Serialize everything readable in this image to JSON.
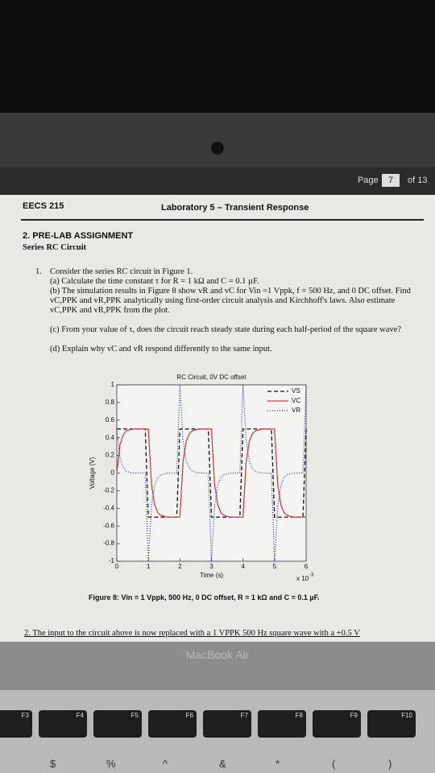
{
  "toolbar": {
    "page_label": "Page",
    "page_number": "7",
    "page_total": "of 13"
  },
  "header": {
    "course": "EECS 215",
    "title": "Laboratory 5 – Transient Response"
  },
  "section": {
    "heading": "2. PRE-LAB ASSIGNMENT",
    "subheading": "Series RC Circuit"
  },
  "items": [
    {
      "number": "1.",
      "text": "Consider the series RC circuit in Figure 1.",
      "parts": [
        "(a) Calculate the time constant τ for R = 1 kΩ and C = 0.1 µF.",
        "(b) The simulation results in Figure 8 show vR and vC for Vin =1 Vppk, f = 500 Hz, and 0 DC offset. Find vC,PPK and vR,PPK analytically using first-order circuit analysis and Kirchhoff's laws. Also estimate vC,PPK and vR,PPK from the plot.",
        "(c) From your value of τ, does the circuit reach steady state during each half-period of the square wave?",
        "(d) Explain why vC and vR respond differently to the same input."
      ]
    }
  ],
  "chart_data": {
    "type": "line",
    "title": "RC Circuit, 0V DC offset",
    "x_label": "Time (s)",
    "y_label": "Voltage (V)",
    "x_multiplier": "x 10",
    "x_multiplier_exponent": "-3",
    "xlim": [
      0,
      6
    ],
    "ylim": [
      -1,
      1
    ],
    "xticks": [
      0,
      1,
      2,
      3,
      4,
      5,
      6
    ],
    "yticks": [
      -1,
      -0.8,
      -0.6,
      -0.4,
      -0.2,
      0,
      0.2,
      0.4,
      0.6,
      0.8,
      1
    ],
    "legend": "top-right",
    "x": [
      0,
      0.1,
      0.2,
      0.3,
      0.4,
      0.5,
      0.6,
      0.7,
      0.8,
      0.9,
      1,
      1.1,
      1.2,
      1.3,
      1.4,
      1.5,
      1.6,
      1.7,
      1.8,
      1.9,
      2,
      2.1,
      2.2,
      2.3,
      2.4,
      2.5,
      2.6,
      2.7,
      2.8,
      2.9,
      3,
      3.1,
      3.2,
      3.3,
      3.4,
      3.5,
      3.6,
      3.7,
      3.8,
      3.9,
      4,
      4.1,
      4.2,
      4.3,
      4.4,
      4.5,
      4.6,
      4.7,
      4.8,
      4.9,
      5,
      5.1,
      5.2,
      5.3,
      5.4,
      5.5,
      5.6,
      5.7,
      5.8,
      5.9,
      6
    ],
    "series": [
      {
        "name": "VS",
        "color": "#111111",
        "dash": "5,3",
        "values": [
          0.5,
          0.5,
          0.5,
          0.5,
          0.5,
          0.5,
          0.5,
          0.5,
          0.5,
          0.5,
          -0.5,
          -0.5,
          -0.5,
          -0.5,
          -0.5,
          -0.5,
          -0.5,
          -0.5,
          -0.5,
          -0.5,
          0.5,
          0.5,
          0.5,
          0.5,
          0.5,
          0.5,
          0.5,
          0.5,
          0.5,
          0.5,
          -0.5,
          -0.5,
          -0.5,
          -0.5,
          -0.5,
          -0.5,
          -0.5,
          -0.5,
          -0.5,
          -0.5,
          0.5,
          0.5,
          0.5,
          0.5,
          0.5,
          0.5,
          0.5,
          0.5,
          0.5,
          0.5,
          -0.5,
          -0.5,
          -0.5,
          -0.5,
          -0.5,
          -0.5,
          -0.5,
          -0.5,
          -0.5,
          -0.5,
          0.5
        ]
      },
      {
        "name": "VC",
        "color": "#d0404a",
        "dash": "none",
        "values": [
          0,
          0.32,
          0.43,
          0.48,
          0.49,
          0.5,
          0.5,
          0.5,
          0.5,
          0.5,
          0.5,
          -0.13,
          -0.36,
          -0.45,
          -0.48,
          -0.49,
          -0.5,
          -0.5,
          -0.5,
          -0.5,
          -0.5,
          0.13,
          0.36,
          0.45,
          0.48,
          0.49,
          0.5,
          0.5,
          0.5,
          0.5,
          0.5,
          -0.13,
          -0.36,
          -0.45,
          -0.48,
          -0.49,
          -0.5,
          -0.5,
          -0.5,
          -0.5,
          -0.5,
          0.13,
          0.36,
          0.45,
          0.48,
          0.49,
          0.5,
          0.5,
          0.5,
          0.5,
          0.5,
          -0.13,
          -0.36,
          -0.45,
          -0.48,
          -0.49,
          -0.5,
          -0.5,
          -0.5,
          -0.5,
          -0.5
        ]
      },
      {
        "name": "VR",
        "color": "#2a2ad0",
        "dash": "1,2",
        "values": [
          0.5,
          0.18,
          0.07,
          0.02,
          0.01,
          0,
          0,
          0,
          0,
          0,
          -1,
          -0.37,
          -0.14,
          -0.05,
          -0.02,
          -0.01,
          0,
          0,
          0,
          0,
          1,
          0.37,
          0.14,
          0.05,
          0.02,
          0.01,
          0,
          0,
          0,
          0,
          -1,
          -0.37,
          -0.14,
          -0.05,
          -0.02,
          -0.01,
          0,
          0,
          0,
          0,
          1,
          0.37,
          0.14,
          0.05,
          0.02,
          0.01,
          0,
          0,
          0,
          0,
          -1,
          -0.37,
          -0.14,
          -0.05,
          -0.02,
          -0.01,
          0,
          0,
          0,
          0,
          1
        ]
      }
    ]
  },
  "caption": "Figure 8: Vin = 1 Vppk, 500 Hz, 0 DC offset, R = 1 kΩ and C = 0.1 µF.",
  "next_item": "2. The input to the circuit above is now replaced with a 1 VPPK 500 Hz square wave with a +0.5 V",
  "laptop": {
    "brand": "MacBook Air",
    "function_keys": [
      "F3",
      "F4",
      "F5",
      "F6",
      "F7",
      "F8",
      "F9",
      "F10"
    ],
    "number_row": [
      "$",
      "%",
      "^",
      "&",
      "*",
      "(",
      ")"
    ]
  }
}
